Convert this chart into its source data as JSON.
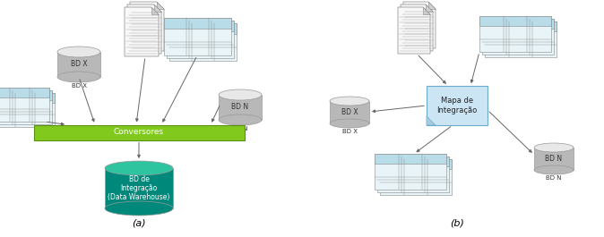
{
  "fig_width": 6.74,
  "fig_height": 2.65,
  "dpi": 100,
  "bg_color": "#ffffff",
  "label_a": "(a)",
  "label_b": "(b)",
  "conversor_text": "Conversores",
  "conversor_color": "#82c91e",
  "conversor_border": "#5a9010",
  "dw_text": "BD de\nIntegração\n(Data Warehouse)",
  "dw_color_top": "#2ec4a0",
  "dw_color_body": "#00897b",
  "mapa_text": "Mapa de\nIntegração",
  "mapa_color": "#cce5f5",
  "mapa_border": "#6aabcc",
  "db_gray_top": "#e8e8e8",
  "db_gray_body": "#b8b8b8",
  "line_color": "#666666",
  "table_header_color": "#b8dce8",
  "table_body_color": "#e8f4f8",
  "doc_color": "#f8f8f8",
  "doc_fold_color": "#d0d0d0"
}
